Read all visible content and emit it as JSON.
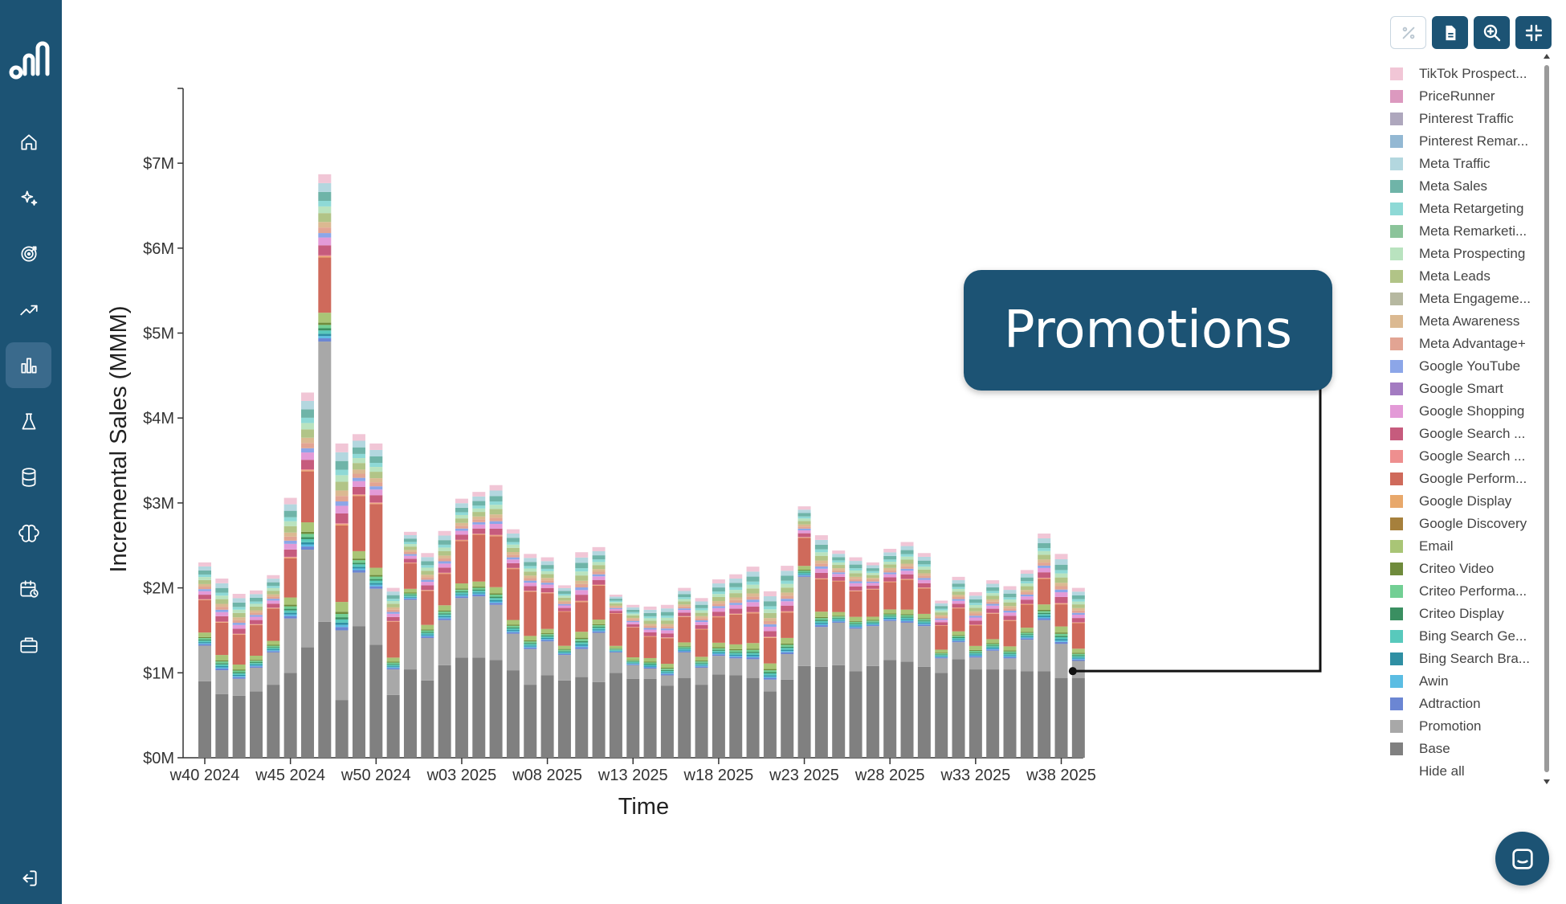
{
  "sidebar": {
    "items": [
      {
        "name": "home-icon"
      },
      {
        "name": "sparkles-icon"
      },
      {
        "name": "target-icon"
      },
      {
        "name": "trending-up-icon"
      },
      {
        "name": "bar-chart-icon",
        "active": true
      },
      {
        "name": "flask-icon"
      },
      {
        "name": "database-icon"
      },
      {
        "name": "brain-icon"
      },
      {
        "name": "calendar-clock-icon"
      },
      {
        "name": "briefcase-icon"
      }
    ],
    "logout_icon": "logout-icon"
  },
  "toolbar": {
    "buttons": [
      {
        "name": "percent-toggle-button",
        "icon": "percent-icon"
      },
      {
        "name": "export-button",
        "icon": "file-icon"
      },
      {
        "name": "zoom-button",
        "icon": "zoom-in-icon"
      },
      {
        "name": "collapse-button",
        "icon": "minimize-icon"
      }
    ]
  },
  "callout": {
    "text": "Promotions"
  },
  "legend": {
    "items": [
      {
        "label": "TikTok Prospect...",
        "color": "#f1c6d6"
      },
      {
        "label": "PriceRunner",
        "color": "#dc99bf"
      },
      {
        "label": "Pinterest Traffic",
        "color": "#aea7bd"
      },
      {
        "label": "Pinterest Remar...",
        "color": "#93b8d3"
      },
      {
        "label": "Meta Traffic",
        "color": "#b3d7df"
      },
      {
        "label": "Meta Sales",
        "color": "#6fb4a8"
      },
      {
        "label": "Meta Retargeting",
        "color": "#8ed9d6"
      },
      {
        "label": "Meta Remarketi...",
        "color": "#8bc49a"
      },
      {
        "label": "Meta Prospecting",
        "color": "#b9e3bf"
      },
      {
        "label": "Meta Leads",
        "color": "#b1c487"
      },
      {
        "label": "Meta Engageme...",
        "color": "#b6b8a0"
      },
      {
        "label": "Meta Awareness",
        "color": "#dbb991"
      },
      {
        "label": "Meta Advantage+",
        "color": "#e2a493"
      },
      {
        "label": "Google YouTube",
        "color": "#8ca6e8"
      },
      {
        "label": "Google Smart",
        "color": "#a37bc1"
      },
      {
        "label": "Google Shopping",
        "color": "#e39ad7"
      },
      {
        "label": "Google Search ...",
        "color": "#c65b7d"
      },
      {
        "label": "Google Search ...",
        "color": "#ee8f8f"
      },
      {
        "label": "Google Perform...",
        "color": "#cf6a5b"
      },
      {
        "label": "Google Display",
        "color": "#e8a86b"
      },
      {
        "label": "Google Discovery",
        "color": "#a6803c"
      },
      {
        "label": "Email",
        "color": "#a9c576"
      },
      {
        "label": "Criteo Video",
        "color": "#6f8b3c"
      },
      {
        "label": "Criteo Performa...",
        "color": "#72cf94"
      },
      {
        "label": "Criteo Display",
        "color": "#3a8f61"
      },
      {
        "label": "Bing Search Ge...",
        "color": "#58c9bc"
      },
      {
        "label": "Bing Search Bra...",
        "color": "#2f8fa3"
      },
      {
        "label": "Awin",
        "color": "#5bbde3"
      },
      {
        "label": "Adtraction",
        "color": "#6b86d3"
      },
      {
        "label": "Promotion",
        "color": "#a8a8a8"
      },
      {
        "label": "Base",
        "color": "#808080"
      },
      {
        "label": "Hide all",
        "color": ""
      }
    ]
  },
  "chart_data": {
    "type": "bar",
    "stacked": true,
    "xlabel": "Time",
    "ylabel": "Incremental Sales (MMM)",
    "yticks": [
      "$0M",
      "$1M",
      "$2M",
      "$3M",
      "$4M",
      "$5M",
      "$6M",
      "$7M"
    ],
    "ylim": [
      0,
      7.9
    ],
    "xticks": [
      "w40 2024",
      "w45 2024",
      "w50 2024",
      "w03 2025",
      "w08 2025",
      "w13 2025",
      "w18 2025",
      "w23 2025",
      "w28 2025",
      "w33 2025",
      "w38 2025"
    ],
    "categories": [
      "w40 2024",
      "w41 2024",
      "w42 2024",
      "w43 2024",
      "w44 2024",
      "w45 2024",
      "w46 2024",
      "w47 2024",
      "w48 2024",
      "w49 2024",
      "w50 2024",
      "w51 2024",
      "w52 2024",
      "w01 2025",
      "w02 2025",
      "w03 2025",
      "w04 2025",
      "w05 2025",
      "w06 2025",
      "w07 2025",
      "w08 2025",
      "w09 2025",
      "w10 2025",
      "w11 2025",
      "w12 2025",
      "w13 2025",
      "w14 2025",
      "w15 2025",
      "w16 2025",
      "w17 2025",
      "w18 2025",
      "w19 2025",
      "w20 2025",
      "w21 2025",
      "w22 2025",
      "w23 2025",
      "w24 2025",
      "w25 2025",
      "w26 2025",
      "w27 2025",
      "w28 2025",
      "w29 2025",
      "w30 2025",
      "w31 2025",
      "w32 2025",
      "w33 2025",
      "w34 2025",
      "w35 2025",
      "w36 2025",
      "w37 2025",
      "w38 2025",
      "w39 2025"
    ],
    "base": [
      0.9,
      0.75,
      0.73,
      0.78,
      0.86,
      1.0,
      1.3,
      1.6,
      0.68,
      1.55,
      1.33,
      0.74,
      1.04,
      0.91,
      1.09,
      1.18,
      1.18,
      1.15,
      1.03,
      0.86,
      0.97,
      0.91,
      0.95,
      0.89,
      1.0,
      0.93,
      0.93,
      0.85,
      0.94,
      0.86,
      0.98,
      0.97,
      0.94,
      0.78,
      0.92,
      1.08,
      1.07,
      1.09,
      1.02,
      1.08,
      1.15,
      1.13,
      1.07,
      1.0,
      1.16,
      1.04,
      1.04,
      1.04,
      1.02,
      1.02,
      0.94,
      0.94
    ],
    "promotion": [
      0.42,
      0.28,
      0.2,
      0.28,
      0.38,
      0.64,
      1.15,
      3.3,
      0.82,
      0.63,
      0.66,
      0.3,
      0.82,
      0.5,
      0.53,
      0.7,
      0.72,
      0.65,
      0.43,
      0.42,
      0.4,
      0.3,
      0.33,
      0.58,
      0.24,
      0.16,
      0.12,
      0.12,
      0.3,
      0.2,
      0.22,
      0.2,
      0.22,
      0.14,
      0.3,
      1.05,
      0.47,
      0.5,
      0.5,
      0.47,
      0.46,
      0.46,
      0.48,
      0.17,
      0.2,
      0.14,
      0.22,
      0.13,
      0.37,
      0.6,
      0.4,
      0.2
    ],
    "google_performance_max": [
      0.38,
      0.38,
      0.35,
      0.36,
      0.38,
      0.46,
      0.6,
      0.65,
      0.9,
      0.65,
      0.75,
      0.42,
      0.3,
      0.4,
      0.37,
      0.5,
      0.55,
      0.6,
      0.6,
      0.52,
      0.42,
      0.4,
      0.35,
      0.4,
      0.38,
      0.35,
      0.25,
      0.3,
      0.3,
      0.32,
      0.3,
      0.35,
      0.35,
      0.3,
      0.3,
      0.33,
      0.38,
      0.36,
      0.3,
      0.32,
      0.32,
      0.35,
      0.3,
      0.28,
      0.27,
      0.24,
      0.3,
      0.3,
      0.27,
      0.3,
      0.26,
      0.3
    ],
    "other_channels": [
      0.6,
      0.7,
      0.65,
      0.55,
      0.53,
      0.96,
      1.25,
      1.32,
      1.3,
      0.98,
      0.96,
      0.54,
      0.5,
      0.6,
      0.68,
      0.67,
      0.68,
      0.81,
      0.63,
      0.6,
      0.57,
      0.42,
      0.79,
      0.61,
      0.3,
      0.36,
      0.48,
      0.53,
      0.46,
      0.5,
      0.6,
      0.64,
      0.74,
      0.74,
      0.74,
      0.5,
      0.7,
      0.49,
      0.54,
      0.43,
      0.53,
      0.6,
      0.56,
      0.4,
      0.5,
      0.53,
      0.53,
      0.55,
      0.55,
      0.72,
      0.8,
      0.56
    ]
  },
  "chat": {
    "icon": "chat-icon"
  }
}
